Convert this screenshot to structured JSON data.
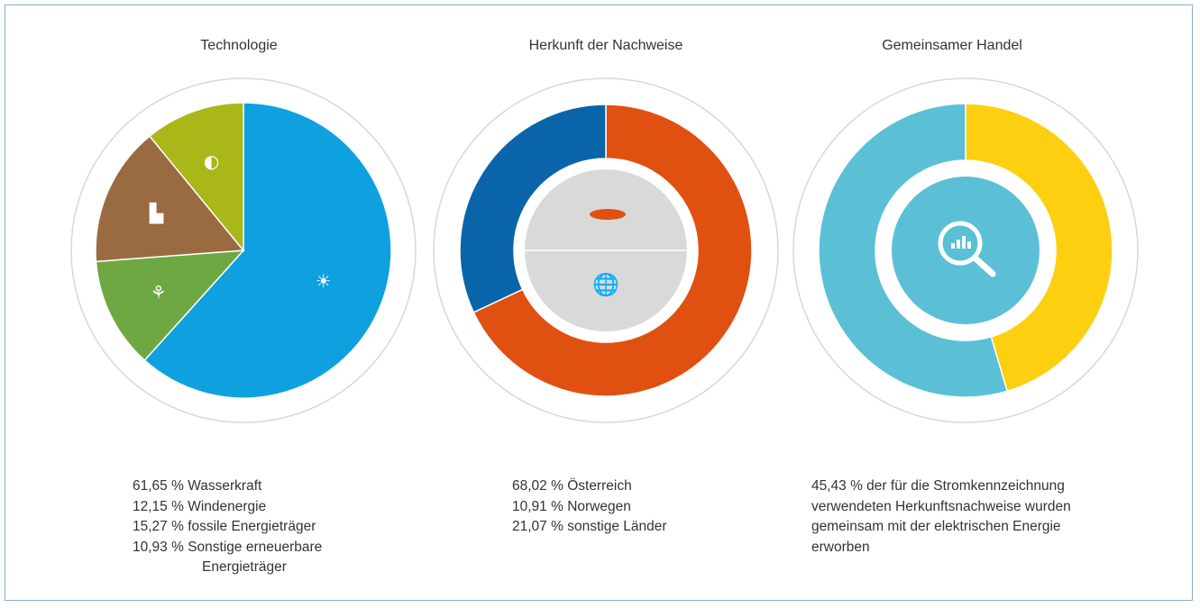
{
  "chart_data": [
    {
      "type": "pie",
      "title": "Technologie",
      "categories": [
        "Wasserkraft",
        "Windenergie",
        "fossile Energieträger",
        "Sonstige erneuerbare Energieträger"
      ],
      "values": [
        61.65,
        12.15,
        15.27,
        10.93
      ],
      "colors": [
        "#0fa0e0",
        "#6ea843",
        "#9a6a40",
        "#aab718"
      ],
      "icons": [
        "water-power-icon",
        "wind-turbine-icon",
        "factory-icon",
        "biomass-icon"
      ],
      "legend": [
        {
          "value": "61,65 %",
          "label": "Wasserkraft"
        },
        {
          "value": "12,15 %",
          "label": "Windenergie"
        },
        {
          "value": "15,27 %",
          "label": "fossile Energieträger"
        },
        {
          "value": "10,93 %",
          "label": "Sonstige erneuerbare",
          "label2": "Energieträger"
        }
      ]
    },
    {
      "type": "pie",
      "title": "Herkunft der Nachweise",
      "categories": [
        "Österreich",
        "Ausland"
      ],
      "values": [
        68.02,
        31.98
      ],
      "colors": [
        "#e05010",
        "#0a64aa"
      ],
      "icons": [
        "austria-map-icon",
        "globe-icon"
      ],
      "legend": [
        {
          "value": "68,02 %",
          "label": "Österreich"
        },
        {
          "value": "10,91 %",
          "label": "Norwegen"
        },
        {
          "value": "21,07 %",
          "label": "sonstige Länder"
        }
      ]
    },
    {
      "type": "pie",
      "title": "Gemeinsamer Handel",
      "values": [
        45.43,
        54.57
      ],
      "colors": [
        "#fcd010",
        "#5bc0d6"
      ],
      "icons": [
        "magnifier-chart-icon"
      ],
      "text_lines": [
        "45,43 % der für die Stromkennzeichnung",
        "verwendeten Herkunftsnachweise wurden",
        "gemeinsam mit der elektrischen Energie",
        "erworben"
      ]
    }
  ]
}
